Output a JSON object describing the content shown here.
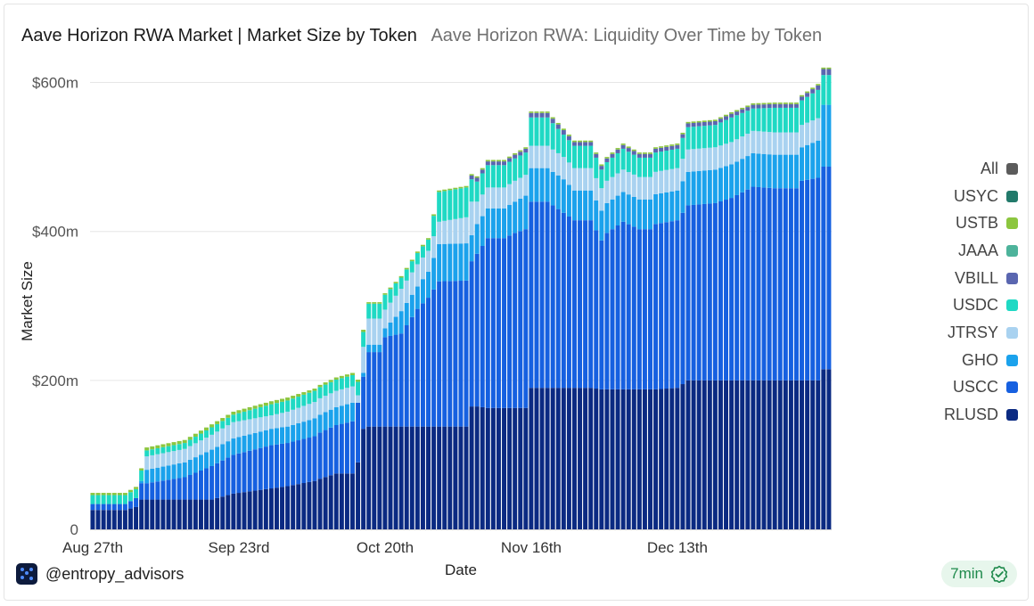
{
  "header": {
    "title": "Aave Horizon RWA Market | Market Size by Token",
    "subtitle": "Aave Horizon RWA: Liquidity Over Time by Token"
  },
  "footer": {
    "brand": "@entropy_advisors",
    "freshness": "7min"
  },
  "colors": {
    "RLUSD": "#0b2a82",
    "USCC": "#1660e0",
    "GHO": "#1ba2ec",
    "JTRSY": "#a9d2f0",
    "USDC": "#1fd9c4",
    "VBILL": "#5a66b0",
    "JAAA": "#4db39b",
    "USTB": "#8cc63f",
    "USYC": "#227a6b",
    "All": "#5b5b5b"
  },
  "chart_data": {
    "type": "bar",
    "stacked": true,
    "title": "Aave Horizon RWA Market | Market Size by Token",
    "xlabel": "Date",
    "ylabel": "Market Size",
    "ylim": [
      0,
      615
    ],
    "y_ticks": [
      {
        "value": 0,
        "label": "0"
      },
      {
        "value": 200,
        "label": "$200m"
      },
      {
        "value": 400,
        "label": "$400m"
      },
      {
        "value": 600,
        "label": "$600m"
      }
    ],
    "x_ticks": [
      {
        "index": 0,
        "label": "Aug 27th"
      },
      {
        "index": 27,
        "label": "Sep 23rd"
      },
      {
        "index": 54,
        "label": "Oct 20th"
      },
      {
        "index": 81,
        "label": "Nov 16th"
      },
      {
        "index": 108,
        "label": "Dec 13th"
      }
    ],
    "legend": [
      "All",
      "USYC",
      "USTB",
      "JAAA",
      "VBILL",
      "USDC",
      "JTRSY",
      "GHO",
      "USCC",
      "RLUSD"
    ],
    "stack_order": [
      "RLUSD",
      "USCC",
      "GHO",
      "JTRSY",
      "USDC",
      "VBILL",
      "JAAA",
      "USTB"
    ],
    "knots": [
      [
        0,
        26,
        8,
        0,
        0,
        12,
        0,
        0,
        3
      ],
      [
        6,
        26,
        8,
        0,
        0,
        12,
        0,
        0,
        3
      ],
      [
        8,
        30,
        12,
        0,
        0,
        12,
        0,
        0,
        3
      ],
      [
        9,
        40,
        22,
        3,
        0,
        14,
        0,
        0,
        3
      ],
      [
        10,
        40,
        22,
        18,
        18,
        8,
        0,
        0,
        4
      ],
      [
        17,
        40,
        30,
        20,
        18,
        8,
        0,
        0,
        4
      ],
      [
        22,
        40,
        45,
        22,
        20,
        10,
        0,
        0,
        4
      ],
      [
        26,
        48,
        52,
        22,
        22,
        10,
        0,
        0,
        4
      ],
      [
        33,
        55,
        58,
        22,
        18,
        15,
        0,
        0,
        4
      ],
      [
        36,
        58,
        58,
        22,
        20,
        15,
        0,
        0,
        4
      ],
      [
        41,
        65,
        60,
        24,
        22,
        15,
        0,
        0,
        3
      ],
      [
        42,
        68,
        62,
        24,
        22,
        15,
        0,
        0,
        3
      ],
      [
        45,
        75,
        65,
        24,
        22,
        15,
        0,
        0,
        3
      ],
      [
        48,
        75,
        70,
        25,
        22,
        15,
        0,
        0,
        3
      ],
      [
        49,
        90,
        80,
        0,
        10,
        18,
        0,
        0,
        3
      ],
      [
        50,
        135,
        70,
        5,
        35,
        20,
        0,
        0,
        3
      ],
      [
        51,
        138,
        100,
        10,
        35,
        20,
        0,
        0,
        2
      ],
      [
        53,
        138,
        100,
        10,
        35,
        20,
        0,
        0,
        2
      ],
      [
        54,
        138,
        120,
        12,
        25,
        20,
        0,
        0,
        2
      ],
      [
        57,
        138,
        125,
        30,
        30,
        15,
        0,
        0,
        2
      ],
      [
        60,
        138,
        158,
        30,
        30,
        15,
        0,
        0,
        2
      ],
      [
        62,
        138,
        173,
        35,
        28,
        15,
        0,
        0,
        2
      ],
      [
        64,
        138,
        195,
        50,
        30,
        40,
        0,
        0,
        2
      ],
      [
        69,
        138,
        196,
        50,
        35,
        40,
        0,
        0,
        2
      ],
      [
        70,
        165,
        195,
        35,
        45,
        30,
        5,
        0,
        2
      ],
      [
        71,
        165,
        205,
        40,
        30,
        27,
        5,
        0,
        2
      ],
      [
        73,
        163,
        228,
        40,
        28,
        30,
        5,
        0,
        2
      ],
      [
        76,
        163,
        228,
        40,
        28,
        30,
        5,
        0,
        2
      ],
      [
        78,
        163,
        235,
        42,
        28,
        30,
        5,
        0,
        2
      ],
      [
        80,
        163,
        240,
        45,
        28,
        30,
        5,
        0,
        2
      ],
      [
        81,
        190,
        250,
        45,
        30,
        38,
        6,
        0,
        2
      ],
      [
        84,
        190,
        250,
        45,
        30,
        38,
        6,
        0,
        2
      ],
      [
        87,
        190,
        235,
        45,
        30,
        30,
        6,
        0,
        2
      ],
      [
        89,
        190,
        225,
        40,
        30,
        30,
        5,
        0,
        2
      ],
      [
        92,
        190,
        225,
        40,
        30,
        30,
        5,
        0,
        2
      ],
      [
        94,
        188,
        200,
        40,
        30,
        25,
        5,
        0,
        2
      ],
      [
        95,
        188,
        210,
        40,
        30,
        25,
        5,
        0,
        2
      ],
      [
        98,
        188,
        225,
        40,
        30,
        28,
        5,
        0,
        2
      ],
      [
        101,
        188,
        215,
        40,
        30,
        26,
        5,
        0,
        2
      ],
      [
        103,
        188,
        215,
        40,
        30,
        26,
        5,
        0,
        2
      ],
      [
        104,
        188,
        222,
        40,
        30,
        26,
        5,
        0,
        2
      ],
      [
        108,
        190,
        225,
        40,
        30,
        26,
        5,
        0,
        2
      ],
      [
        110,
        200,
        235,
        45,
        30,
        30,
        5,
        0,
        2
      ],
      [
        115,
        200,
        238,
        45,
        30,
        30,
        5,
        0,
        2
      ],
      [
        118,
        200,
        245,
        45,
        30,
        33,
        5,
        0,
        2
      ],
      [
        122,
        200,
        260,
        45,
        30,
        30,
        5,
        0,
        2
      ],
      [
        126,
        200,
        258,
        45,
        30,
        33,
        5,
        0,
        2
      ],
      [
        130,
        200,
        258,
        45,
        30,
        33,
        5,
        0,
        2
      ],
      [
        131,
        200,
        268,
        45,
        30,
        33,
        5,
        0,
        2
      ],
      [
        134,
        200,
        272,
        50,
        30,
        38,
        6,
        0,
        2
      ],
      [
        135,
        215,
        272,
        83,
        0,
        40,
        8,
        0,
        2
      ],
      [
        136,
        215,
        272,
        83,
        0,
        40,
        8,
        0,
        2
      ]
    ]
  }
}
